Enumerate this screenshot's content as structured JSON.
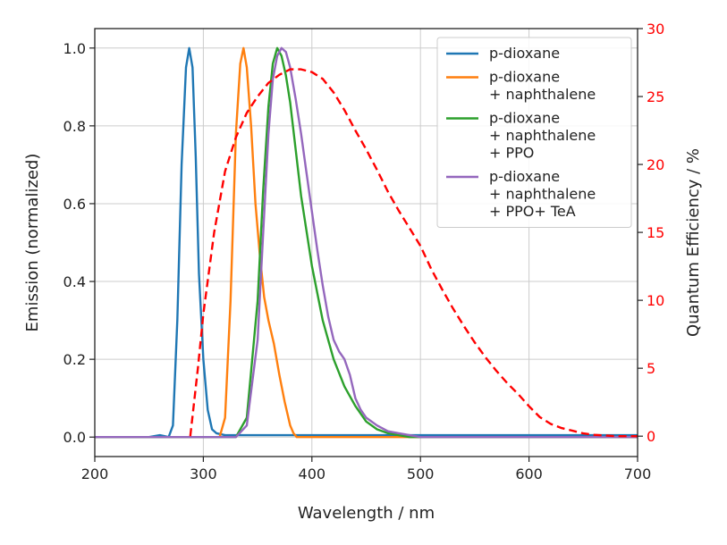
{
  "chart_data": {
    "type": "line",
    "xlabel": "Wavelength / nm",
    "ylabel": "Emission (normalized)",
    "y2label": "Quantum Efficiency / %",
    "xlim": [
      200,
      700
    ],
    "ylim": [
      -0.05,
      1.05
    ],
    "y2lim": [
      -1.5,
      30
    ],
    "xticks": [
      "200",
      "300",
      "400",
      "500",
      "600",
      "700"
    ],
    "yticks": [
      "0.0",
      "0.2",
      "0.4",
      "0.6",
      "0.8",
      "1.0"
    ],
    "y2ticks": [
      "0",
      "5",
      "10",
      "15",
      "20",
      "25",
      "30"
    ],
    "grid": true,
    "legend_position": "top-right",
    "colors": {
      "axis": "#222222",
      "grid": "#cccccc",
      "qe": "#ff0000"
    },
    "series": [
      {
        "name": "p-dioxane",
        "legend_lines": [
          "p-dioxane"
        ],
        "color": "#1f77b4",
        "x": [
          200,
          250,
          260,
          268,
          272,
          276,
          280,
          284,
          287,
          290,
          293,
          296,
          300,
          304,
          308,
          312,
          320,
          340,
          400,
          500,
          600,
          700
        ],
        "y": [
          0.0,
          0.0,
          0.005,
          0.0,
          0.03,
          0.3,
          0.7,
          0.95,
          1.0,
          0.95,
          0.72,
          0.42,
          0.2,
          0.07,
          0.02,
          0.01,
          0.005,
          0.005,
          0.005,
          0.005,
          0.005,
          0.005
        ]
      },
      {
        "name": "p-dioxane + naphthalene",
        "legend_lines": [
          "p-dioxane",
          "+ naphthalene"
        ],
        "color": "#ff7f0e",
        "x": [
          200,
          300,
          315,
          320,
          325,
          330,
          334,
          337,
          340,
          344,
          348,
          352,
          356,
          360,
          365,
          370,
          375,
          380,
          383,
          386,
          400,
          500,
          600,
          700
        ],
        "y": [
          0.0,
          0.0,
          0.0,
          0.05,
          0.35,
          0.78,
          0.96,
          1.0,
          0.95,
          0.8,
          0.6,
          0.47,
          0.36,
          0.3,
          0.24,
          0.16,
          0.09,
          0.03,
          0.01,
          0.0,
          0.0,
          0.0,
          0.0,
          0.0
        ]
      },
      {
        "name": "p-dioxane + naphthalene + PPO",
        "legend_lines": [
          "p-dioxane",
          "+ naphthalene",
          "+ PPO"
        ],
        "color": "#2ca02c",
        "x": [
          200,
          320,
          330,
          340,
          350,
          355,
          360,
          364,
          368,
          372,
          376,
          380,
          385,
          390,
          400,
          410,
          420,
          430,
          440,
          450,
          460,
          470,
          480,
          490,
          500,
          600,
          700
        ],
        "y": [
          0.0,
          0.0,
          0.0,
          0.05,
          0.35,
          0.63,
          0.85,
          0.96,
          1.0,
          0.98,
          0.93,
          0.86,
          0.74,
          0.62,
          0.44,
          0.3,
          0.2,
          0.13,
          0.08,
          0.04,
          0.02,
          0.01,
          0.005,
          0.0,
          0.0,
          0.0,
          0.0
        ]
      },
      {
        "name": "p-dioxane + naphthalene + PPO+ TeA",
        "legend_lines": [
          "p-dioxane",
          "+ naphthalene",
          "+ PPO+ TeA"
        ],
        "color": "#9467bd",
        "x": [
          200,
          320,
          330,
          340,
          350,
          355,
          360,
          364,
          368,
          372,
          376,
          380,
          385,
          390,
          395,
          400,
          405,
          410,
          415,
          420,
          425,
          430,
          435,
          440,
          445,
          450,
          460,
          470,
          480,
          490,
          500,
          600,
          700
        ],
        "y": [
          0.0,
          0.0,
          0.0,
          0.03,
          0.25,
          0.52,
          0.78,
          0.92,
          0.98,
          1.0,
          0.99,
          0.95,
          0.87,
          0.78,
          0.68,
          0.58,
          0.48,
          0.39,
          0.31,
          0.25,
          0.22,
          0.2,
          0.16,
          0.1,
          0.07,
          0.05,
          0.03,
          0.015,
          0.01,
          0.005,
          0.0,
          0.0,
          0.0
        ]
      },
      {
        "name": "Quantum Efficiency",
        "axis": "right",
        "color": "#ff0000",
        "dashed": true,
        "x": [
          288,
          295,
          300,
          310,
          320,
          330,
          340,
          350,
          360,
          370,
          380,
          390,
          400,
          410,
          420,
          430,
          440,
          450,
          460,
          470,
          480,
          490,
          500,
          510,
          520,
          530,
          540,
          550,
          560,
          570,
          580,
          590,
          600,
          610,
          620,
          630,
          640,
          650,
          660,
          670,
          680,
          690,
          700
        ],
        "y": [
          0,
          5,
          9,
          15,
          19.5,
          22,
          23.8,
          25,
          26,
          26.6,
          27.0,
          27.0,
          26.8,
          26.3,
          25.3,
          24.0,
          22.5,
          21.1,
          19.6,
          18.0,
          16.6,
          15.3,
          14.0,
          12.3,
          10.8,
          9.4,
          8.1,
          6.9,
          5.8,
          4.8,
          3.9,
          3.1,
          2.2,
          1.4,
          0.9,
          0.6,
          0.4,
          0.2,
          0.1,
          0.05,
          0.0,
          0.0,
          0.0
        ]
      }
    ]
  }
}
